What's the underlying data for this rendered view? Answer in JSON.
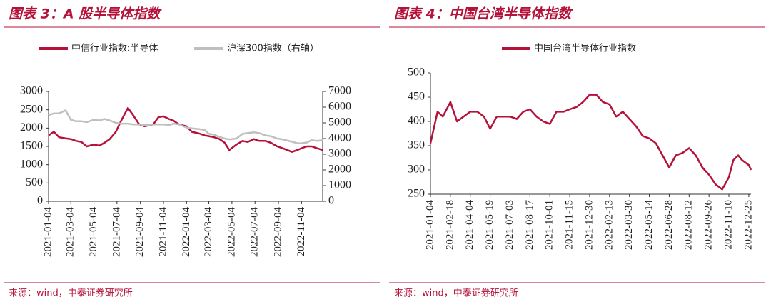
{
  "chart_data": [
    {
      "type": "line",
      "title": "图表 3：A 股半导体指数",
      "source": "来源：wind，中泰证券研究所",
      "x": [
        "2021-01-04",
        "2021-01-18",
        "2021-02-01",
        "2021-02-18",
        "2021-03-04",
        "2021-03-18",
        "2021-04-01",
        "2021-04-15",
        "2021-05-04",
        "2021-05-18",
        "2021-06-01",
        "2021-06-15",
        "2021-07-01",
        "2021-07-15",
        "2021-08-02",
        "2021-08-16",
        "2021-09-01",
        "2021-09-15",
        "2021-10-08",
        "2021-10-22",
        "2021-11-04",
        "2021-11-18",
        "2021-12-01",
        "2021-12-15",
        "2022-01-04",
        "2022-01-18",
        "2022-02-07",
        "2022-02-21",
        "2022-03-04",
        "2022-03-18",
        "2022-04-01",
        "2022-04-15",
        "2022-04-27",
        "2022-05-16",
        "2022-06-01",
        "2022-06-15",
        "2022-07-01",
        "2022-07-15",
        "2022-08-01",
        "2022-08-15",
        "2022-09-01",
        "2022-09-15",
        "2022-10-10",
        "2022-10-24",
        "2022-11-04",
        "2022-11-18",
        "2022-12-01",
        "2022-12-15",
        "2022-12-30"
      ],
      "series": [
        {
          "name": "中信行业指数:半导体",
          "color": "#b5123a",
          "values": [
            1800,
            1900,
            1750,
            1720,
            1700,
            1650,
            1620,
            1500,
            1550,
            1520,
            1600,
            1700,
            1900,
            2200,
            2550,
            2350,
            2100,
            2050,
            2100,
            2300,
            2320,
            2250,
            2200,
            2100,
            2050,
            1900,
            1850,
            1800,
            1780,
            1750,
            1700,
            1600,
            1400,
            1550,
            1650,
            1620,
            1700,
            1650,
            1650,
            1600,
            1500,
            1450,
            1350,
            1400,
            1450,
            1500,
            1500,
            1450,
            1400
          ]
        },
        {
          "name": "沪深300指数（右轴）",
          "color": "#bfbfbf",
          "axis": "y2",
          "values": [
            5500,
            5600,
            5600,
            5800,
            5200,
            5100,
            5100,
            5050,
            5200,
            5150,
            5250,
            5150,
            5000,
            4950,
            4950,
            4900,
            4900,
            4850,
            4900,
            4900,
            4900,
            4850,
            4950,
            4900,
            4700,
            4650,
            4600,
            4550,
            4300,
            4250,
            4100,
            4000,
            3950,
            4000,
            4300,
            4350,
            4400,
            4350,
            4200,
            4150,
            4000,
            3950,
            3800,
            3700,
            3700,
            3750,
            3900,
            3850,
            3900
          ]
        }
      ],
      "xlim": [
        "2021-01-04",
        "2022-12-30"
      ],
      "xticks": [
        "2021-01-04",
        "2021-03-04",
        "2021-05-04",
        "2021-07-04",
        "2021-09-04",
        "2021-11-04",
        "2022-01-04",
        "2022-03-04",
        "2022-05-04",
        "2022-07-04",
        "2022-09-04",
        "2022-11-04"
      ],
      "ylim": [
        0,
        3000
      ],
      "yticks": [
        0,
        500,
        1000,
        1500,
        2000,
        2500,
        3000
      ],
      "y2lim": [
        0,
        7000
      ],
      "y2ticks": [
        0,
        1000,
        2000,
        3000,
        4000,
        5000,
        6000,
        7000
      ]
    },
    {
      "type": "line",
      "title": "图表 4：中国台湾半导体指数",
      "source": "来源：wind，中泰证券研究所",
      "x": [
        "2021-01-04",
        "2021-01-20",
        "2021-02-01",
        "2021-02-18",
        "2021-03-05",
        "2021-03-20",
        "2021-04-04",
        "2021-04-20",
        "2021-05-05",
        "2021-05-19",
        "2021-06-03",
        "2021-06-18",
        "2021-07-03",
        "2021-07-18",
        "2021-08-02",
        "2021-08-17",
        "2021-09-01",
        "2021-09-16",
        "2021-10-01",
        "2021-10-16",
        "2021-11-01",
        "2021-11-15",
        "2021-12-01",
        "2021-12-15",
        "2021-12-30",
        "2022-01-14",
        "2022-01-29",
        "2022-02-13",
        "2022-02-28",
        "2022-03-15",
        "2022-03-30",
        "2022-04-14",
        "2022-04-29",
        "2022-05-14",
        "2022-05-29",
        "2022-06-13",
        "2022-06-28",
        "2022-07-13",
        "2022-07-28",
        "2022-08-12",
        "2022-08-27",
        "2022-09-11",
        "2022-09-26",
        "2022-10-11",
        "2022-10-26",
        "2022-11-10",
        "2022-11-20",
        "2022-12-01",
        "2022-12-10",
        "2022-12-25",
        "2022-12-30"
      ],
      "series": [
        {
          "name": "中国台湾半导体行业指数",
          "color": "#b5123a",
          "values": [
            355,
            420,
            410,
            440,
            400,
            410,
            420,
            420,
            410,
            385,
            410,
            410,
            410,
            405,
            420,
            425,
            410,
            400,
            395,
            420,
            420,
            425,
            430,
            440,
            455,
            455,
            440,
            435,
            410,
            420,
            405,
            390,
            370,
            365,
            355,
            330,
            305,
            330,
            335,
            345,
            330,
            305,
            290,
            270,
            260,
            285,
            320,
            330,
            320,
            310,
            300
          ]
        }
      ],
      "xlim": [
        "2021-01-04",
        "2022-12-30"
      ],
      "xticks": [
        "2021-01-04",
        "2021-02-18",
        "2021-04-04",
        "2021-05-19",
        "2021-07-03",
        "2021-08-17",
        "2021-10-01",
        "2021-11-15",
        "2021-12-30",
        "2022-02-13",
        "2022-03-30",
        "2022-05-14",
        "2022-06-28",
        "2022-08-12",
        "2022-09-26",
        "2022-11-10",
        "2022-12-25"
      ],
      "ylim": [
        250,
        500
      ],
      "yticks": [
        250,
        300,
        350,
        400,
        450,
        500
      ]
    }
  ]
}
